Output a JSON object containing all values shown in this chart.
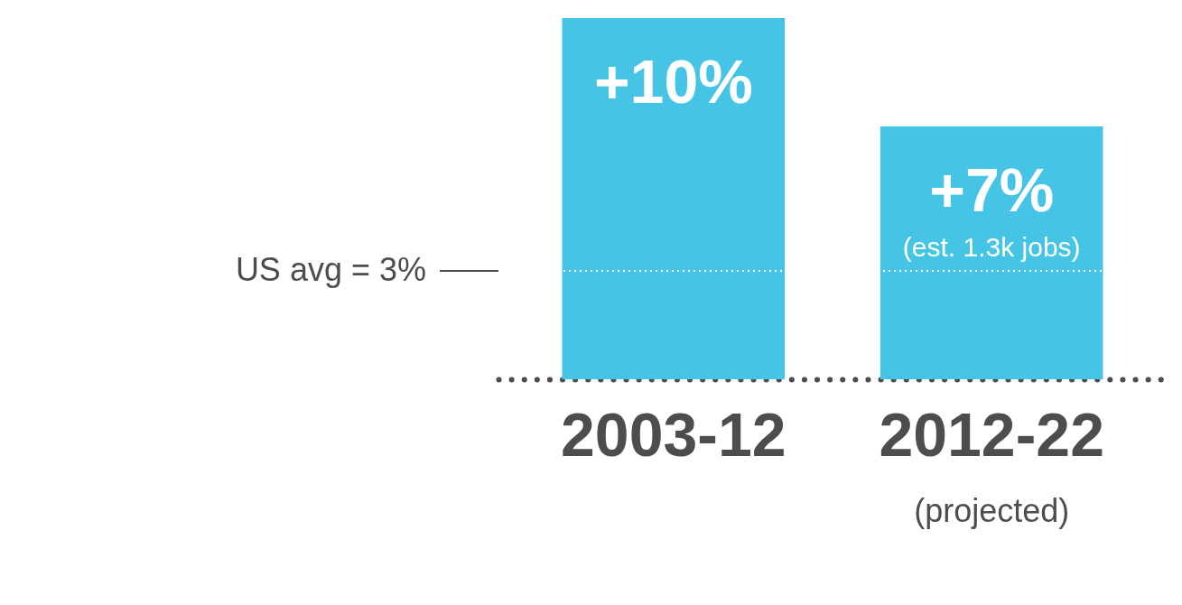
{
  "chart_data": {
    "type": "bar",
    "categories": [
      "2003-12",
      "2012-22"
    ],
    "values": [
      10,
      7
    ],
    "colors": [
      "#45c4e6",
      "#45c4e6"
    ],
    "value_labels": [
      "+10%",
      "+7%"
    ],
    "ref_lines": [
      {
        "axis": "y",
        "value": 3,
        "label": "US avg = 3%",
        "color": "#ffffff",
        "line_style": "dotted"
      }
    ],
    "annotations": [
      "(est. 1.3k jobs)",
      "(projected)"
    ]
  }
}
